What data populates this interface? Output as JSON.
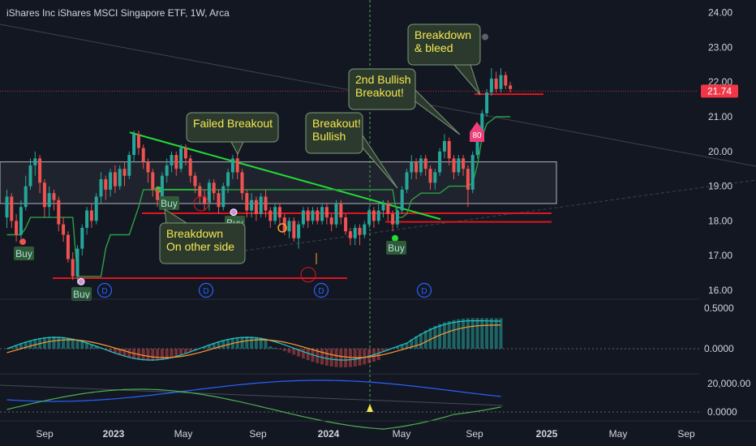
{
  "header": {
    "title": "iShares Inc iShares MSCI Singapore ETF, 1W, Arca"
  },
  "colors": {
    "background": "#131722",
    "up": "#26a69a",
    "down": "#ef5350",
    "trendline": "#22dd33",
    "support": "#e0141e",
    "annotation_bg": "#2c3a2e",
    "annotation_text": "#f5e84e",
    "rsi": "#26a69a",
    "buy": "#2e5a37",
    "price_tag": "#f23645",
    "dividend": "#2962ff",
    "macd": "#21c8c8",
    "signal": "#ff9b33",
    "slow": "#2962ff",
    "fast": "#4caf50"
  },
  "chart_data": [
    {
      "type": "candlestick",
      "title": "iShares Inc iShares MSCI Singapore ETF, 1W, Arca",
      "price_axis": {
        "ticks": [
          "24.00",
          "23.00",
          "22.00",
          "21.00",
          "20.00",
          "19.00",
          "18.00",
          "17.00",
          "16.00"
        ],
        "range": [
          15.7,
          24.4
        ]
      },
      "time_axis": {
        "ticks": [
          "Sep",
          "2023",
          "May",
          "Sep",
          "2024",
          "May",
          "Sep",
          "2025",
          "May",
          "Sep"
        ]
      },
      "last_price": "21.74",
      "candles": [
        {
          "o": 18.1,
          "c": 18.7,
          "h": 18.9,
          "l": 17.8
        },
        {
          "o": 18.7,
          "c": 18.0,
          "h": 18.8,
          "l": 17.8
        },
        {
          "o": 18.0,
          "c": 17.6,
          "h": 18.2,
          "l": 17.4
        },
        {
          "o": 17.6,
          "c": 18.4,
          "h": 18.6,
          "l": 17.5
        },
        {
          "o": 18.4,
          "c": 19.0,
          "h": 19.3,
          "l": 18.3
        },
        {
          "o": 19.0,
          "c": 19.6,
          "h": 19.8,
          "l": 18.9
        },
        {
          "o": 19.6,
          "c": 19.8,
          "h": 20.0,
          "l": 19.3
        },
        {
          "o": 19.8,
          "c": 19.1,
          "h": 19.9,
          "l": 18.8
        },
        {
          "o": 19.1,
          "c": 18.4,
          "h": 19.2,
          "l": 18.1
        },
        {
          "o": 18.4,
          "c": 18.8,
          "h": 19.0,
          "l": 18.1
        },
        {
          "o": 18.8,
          "c": 18.6,
          "h": 18.9,
          "l": 18.3
        },
        {
          "o": 18.6,
          "c": 17.9,
          "h": 18.7,
          "l": 17.7
        },
        {
          "o": 17.9,
          "c": 17.6,
          "h": 18.1,
          "l": 17.4
        },
        {
          "o": 17.6,
          "c": 16.9,
          "h": 17.7,
          "l": 16.8
        },
        {
          "o": 16.9,
          "c": 16.4,
          "h": 17.1,
          "l": 16.3
        },
        {
          "o": 16.4,
          "c": 17.2,
          "h": 17.3,
          "l": 16.2
        },
        {
          "o": 17.2,
          "c": 17.8,
          "h": 17.9,
          "l": 17.0
        },
        {
          "o": 17.8,
          "c": 18.3,
          "h": 18.4,
          "l": 17.6
        },
        {
          "o": 18.3,
          "c": 18.0,
          "h": 18.5,
          "l": 17.8
        },
        {
          "o": 18.0,
          "c": 18.7,
          "h": 18.8,
          "l": 17.9
        },
        {
          "o": 18.7,
          "c": 19.2,
          "h": 19.4,
          "l": 18.5
        },
        {
          "o": 19.2,
          "c": 18.9,
          "h": 19.3,
          "l": 18.6
        },
        {
          "o": 18.9,
          "c": 19.4,
          "h": 19.5,
          "l": 18.7
        },
        {
          "o": 19.4,
          "c": 19.0,
          "h": 19.6,
          "l": 18.8
        },
        {
          "o": 19.0,
          "c": 19.5,
          "h": 19.6,
          "l": 18.9
        },
        {
          "o": 19.5,
          "c": 19.3,
          "h": 19.7,
          "l": 19.0
        },
        {
          "o": 19.3,
          "c": 19.9,
          "h": 20.0,
          "l": 19.2
        },
        {
          "o": 19.9,
          "c": 20.5,
          "h": 20.6,
          "l": 19.7
        },
        {
          "o": 20.5,
          "c": 20.1,
          "h": 20.6,
          "l": 19.9
        },
        {
          "o": 20.1,
          "c": 19.7,
          "h": 20.2,
          "l": 19.5
        },
        {
          "o": 19.7,
          "c": 19.4,
          "h": 19.8,
          "l": 19.1
        },
        {
          "o": 19.4,
          "c": 18.9,
          "h": 19.5,
          "l": 18.7
        },
        {
          "o": 18.9,
          "c": 18.6,
          "h": 19.0,
          "l": 18.4
        },
        {
          "o": 18.6,
          "c": 19.3,
          "h": 19.4,
          "l": 18.5
        },
        {
          "o": 19.3,
          "c": 19.6,
          "h": 19.8,
          "l": 19.1
        },
        {
          "o": 19.6,
          "c": 19.9,
          "h": 20.0,
          "l": 19.4
        },
        {
          "o": 19.9,
          "c": 19.5,
          "h": 20.0,
          "l": 19.3
        },
        {
          "o": 19.5,
          "c": 20.1,
          "h": 20.2,
          "l": 19.4
        },
        {
          "o": 20.1,
          "c": 19.8,
          "h": 20.2,
          "l": 19.6
        },
        {
          "o": 19.8,
          "c": 19.3,
          "h": 19.9,
          "l": 19.1
        },
        {
          "o": 19.3,
          "c": 19.0,
          "h": 19.4,
          "l": 18.8
        },
        {
          "o": 19.0,
          "c": 18.7,
          "h": 19.1,
          "l": 18.5
        },
        {
          "o": 18.7,
          "c": 18.5,
          "h": 18.9,
          "l": 18.3
        },
        {
          "o": 18.5,
          "c": 19.1,
          "h": 19.2,
          "l": 18.3
        },
        {
          "o": 19.1,
          "c": 18.8,
          "h": 19.2,
          "l": 18.6
        },
        {
          "o": 18.8,
          "c": 18.4,
          "h": 18.9,
          "l": 18.2
        },
        {
          "o": 18.4,
          "c": 19.0,
          "h": 19.1,
          "l": 18.3
        },
        {
          "o": 19.0,
          "c": 19.4,
          "h": 19.5,
          "l": 18.8
        },
        {
          "o": 19.4,
          "c": 19.8,
          "h": 19.9,
          "l": 19.2
        },
        {
          "o": 19.8,
          "c": 19.4,
          "h": 20.0,
          "l": 19.2
        },
        {
          "o": 19.4,
          "c": 18.8,
          "h": 19.5,
          "l": 18.6
        },
        {
          "o": 18.8,
          "c": 18.3,
          "h": 18.9,
          "l": 18.1
        },
        {
          "o": 18.3,
          "c": 18.6,
          "h": 18.8,
          "l": 18.1
        },
        {
          "o": 18.6,
          "c": 18.2,
          "h": 18.7,
          "l": 18.0
        },
        {
          "o": 18.2,
          "c": 18.7,
          "h": 18.8,
          "l": 18.1
        },
        {
          "o": 18.7,
          "c": 18.3,
          "h": 18.9,
          "l": 18.1
        },
        {
          "o": 18.3,
          "c": 18.0,
          "h": 18.4,
          "l": 17.8
        },
        {
          "o": 18.0,
          "c": 18.4,
          "h": 18.5,
          "l": 17.9
        },
        {
          "o": 18.4,
          "c": 18.1,
          "h": 18.5,
          "l": 17.9
        },
        {
          "o": 18.1,
          "c": 17.7,
          "h": 18.2,
          "l": 17.6
        },
        {
          "o": 17.7,
          "c": 18.0,
          "h": 18.1,
          "l": 17.5
        },
        {
          "o": 18.0,
          "c": 17.5,
          "h": 18.1,
          "l": 17.4
        },
        {
          "o": 17.5,
          "c": 17.9,
          "h": 18.0,
          "l": 17.2
        },
        {
          "o": 17.9,
          "c": 18.3,
          "h": 18.4,
          "l": 17.8
        },
        {
          "o": 18.3,
          "c": 18.0,
          "h": 18.4,
          "l": 17.8
        },
        {
          "o": 18.0,
          "c": 18.3,
          "h": 18.4,
          "l": 17.9
        },
        {
          "o": 18.3,
          "c": 18.0,
          "h": 18.4,
          "l": 17.9
        },
        {
          "o": 18.0,
          "c": 18.4,
          "h": 18.5,
          "l": 17.9
        },
        {
          "o": 18.4,
          "c": 18.1,
          "h": 18.5,
          "l": 17.9
        },
        {
          "o": 18.1,
          "c": 17.9,
          "h": 18.2,
          "l": 17.7
        },
        {
          "o": 17.9,
          "c": 18.5,
          "h": 18.6,
          "l": 17.8
        },
        {
          "o": 18.5,
          "c": 18.1,
          "h": 18.6,
          "l": 17.9
        },
        {
          "o": 18.1,
          "c": 17.7,
          "h": 18.2,
          "l": 17.6
        },
        {
          "o": 17.7,
          "c": 17.5,
          "h": 17.8,
          "l": 17.3
        },
        {
          "o": 17.5,
          "c": 17.8,
          "h": 17.9,
          "l": 17.3
        },
        {
          "o": 17.8,
          "c": 17.6,
          "h": 17.9,
          "l": 17.3
        },
        {
          "o": 17.6,
          "c": 17.9,
          "h": 18.0,
          "l": 17.5
        },
        {
          "o": 17.9,
          "c": 18.3,
          "h": 18.4,
          "l": 17.8
        },
        {
          "o": 18.3,
          "c": 18.0,
          "h": 18.4,
          "l": 17.8
        },
        {
          "o": 18.0,
          "c": 18.3,
          "h": 18.5,
          "l": 17.9
        },
        {
          "o": 18.3,
          "c": 18.5,
          "h": 18.6,
          "l": 18.1
        },
        {
          "o": 18.5,
          "c": 18.2,
          "h": 18.6,
          "l": 18.0
        },
        {
          "o": 18.2,
          "c": 17.9,
          "h": 18.3,
          "l": 17.7
        },
        {
          "o": 17.9,
          "c": 18.3,
          "h": 18.4,
          "l": 17.8
        },
        {
          "o": 18.3,
          "c": 18.9,
          "h": 19.0,
          "l": 18.2
        },
        {
          "o": 18.9,
          "c": 19.4,
          "h": 19.5,
          "l": 18.8
        },
        {
          "o": 19.4,
          "c": 19.7,
          "h": 19.9,
          "l": 19.2
        },
        {
          "o": 19.7,
          "c": 19.4,
          "h": 19.8,
          "l": 19.2
        },
        {
          "o": 19.4,
          "c": 19.8,
          "h": 19.9,
          "l": 19.3
        },
        {
          "o": 19.8,
          "c": 19.5,
          "h": 19.9,
          "l": 19.3
        },
        {
          "o": 19.5,
          "c": 19.1,
          "h": 19.6,
          "l": 18.9
        },
        {
          "o": 19.1,
          "c": 19.4,
          "h": 19.5,
          "l": 18.9
        },
        {
          "o": 19.4,
          "c": 20.0,
          "h": 20.1,
          "l": 19.3
        },
        {
          "o": 20.0,
          "c": 20.3,
          "h": 20.5,
          "l": 19.8
        },
        {
          "o": 20.3,
          "c": 19.8,
          "h": 20.4,
          "l": 19.6
        },
        {
          "o": 19.8,
          "c": 19.4,
          "h": 19.9,
          "l": 19.2
        },
        {
          "o": 19.4,
          "c": 19.8,
          "h": 19.9,
          "l": 19.3
        },
        {
          "o": 19.8,
          "c": 19.5,
          "h": 19.9,
          "l": 19.3
        },
        {
          "o": 19.5,
          "c": 18.9,
          "h": 19.6,
          "l": 18.4
        },
        {
          "o": 18.9,
          "c": 19.9,
          "h": 20.0,
          "l": 18.8
        },
        {
          "o": 19.9,
          "c": 20.6,
          "h": 20.7,
          "l": 19.8
        },
        {
          "o": 20.6,
          "c": 21.1,
          "h": 21.2,
          "l": 20.5
        },
        {
          "o": 21.1,
          "c": 21.7,
          "h": 21.8,
          "l": 21.0
        },
        {
          "o": 21.7,
          "c": 22.1,
          "h": 22.4,
          "l": 21.6
        },
        {
          "o": 22.1,
          "c": 21.8,
          "h": 22.3,
          "l": 21.7
        },
        {
          "o": 21.8,
          "c": 22.2,
          "h": 22.4,
          "l": 21.7
        },
        {
          "o": 22.2,
          "c": 21.9,
          "h": 22.3,
          "l": 21.8
        },
        {
          "o": 21.9,
          "c": 21.8,
          "h": 22.0,
          "l": 21.7
        }
      ],
      "support_trail": [
        17.6,
        17.6,
        17.6,
        17.6,
        17.8,
        18.1,
        18.1,
        18.1,
        18.1,
        18.1,
        18.1,
        18.1,
        18.1,
        18.1,
        18.1,
        16.4,
        16.4,
        16.4,
        16.4,
        16.4,
        16.4,
        17.2,
        17.6,
        17.6,
        17.6,
        17.6,
        17.6,
        18.0,
        18.4,
        18.9,
        18.9,
        18.9,
        18.9,
        18.9,
        18.9,
        18.9,
        18.9,
        18.9,
        18.9,
        18.9,
        18.9,
        18.9,
        18.9,
        18.9,
        18.9,
        18.9,
        18.9,
        18.9,
        18.9,
        18.9,
        18.9,
        18.9,
        18.9,
        18.9,
        18.9,
        18.9,
        18.9,
        18.9,
        18.9,
        18.9,
        18.9,
        18.9,
        18.9,
        18.9,
        18.9,
        18.9,
        18.9,
        18.9,
        18.9,
        18.9,
        18.9,
        18.9,
        18.9,
        18.9,
        18.9,
        18.9,
        18.9,
        18.9,
        18.9,
        18.9,
        18.9,
        18.9,
        18.9,
        18.1,
        18.1,
        18.2,
        18.6,
        18.7,
        18.8,
        18.8,
        18.8,
        18.8,
        18.8,
        18.9,
        19.0,
        19.0,
        19.0,
        19.0,
        19.0,
        19.1,
        19.6,
        20.4,
        20.8,
        20.9,
        21.0,
        21.0,
        21.0,
        21.0
      ],
      "annotations": [
        {
          "text": "Failed Breakout"
        },
        {
          "text": "Breakout!\nBullish"
        },
        {
          "text": "2nd Bullish\nBreakout!"
        },
        {
          "text": "Breakdown\n& bleed"
        },
        {
          "text": "Breakdown\nOn other side"
        }
      ],
      "markers": {
        "buy_label": "Buy",
        "dividend_label": "D",
        "badge_label": "80"
      }
    },
    {
      "type": "line",
      "series": [
        {
          "name": "",
          "values": []
        }
      ],
      "axis_ticks": [
        "0.5000",
        "0.0000"
      ]
    },
    {
      "type": "line",
      "axis_ticks": [
        "20,000.00",
        "0.0000"
      ]
    }
  ]
}
